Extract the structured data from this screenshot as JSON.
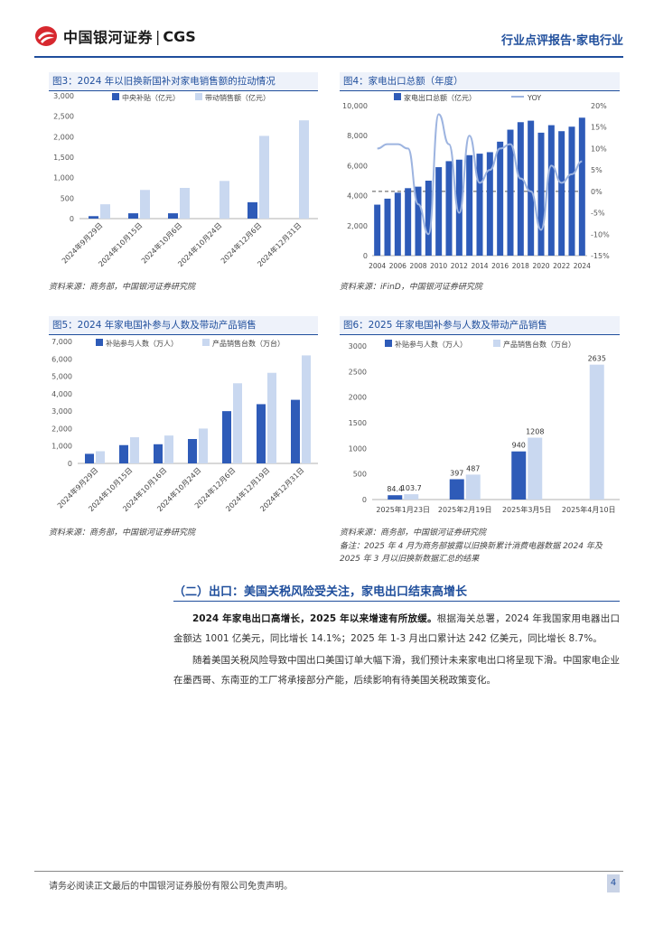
{
  "header": {
    "logo_cn": "中国银河证券",
    "logo_sep": "|",
    "logo_en": "CGS",
    "report_type": "行业点评报告·家电行业"
  },
  "figures": [
    {
      "title": "图3：2024 年以旧换新国补对家电销售额的拉动情况",
      "source": "资料来源：商务部，中国银河证券研究院"
    },
    {
      "title": "图4：家电出口总额（年度）",
      "source": "资料来源：iFinD，中国银河证券研究院"
    },
    {
      "title": "图5：2024 年家电国补参与人数及带动产品销售",
      "source": "资料来源：商务部，中国银河证券研究院"
    },
    {
      "title": "图6：2025 年家电国补参与人数及带动产品销售",
      "source": "资料来源：商务部，中国银河证券研究院",
      "note": "备注：2025 年 4 月为商务部披露以旧换新累计消费电器数据 2024 年及 2025 年 3 月以旧换新数据汇总的结果"
    }
  ],
  "chart_data": [
    {
      "type": "bar",
      "title": "图3：2024 年以旧换新国补对家电销售额的拉动情况",
      "categories": [
        "2024年9月29日",
        "2024年10月15日",
        "2024年10月6日",
        "2024年10月24日",
        "2024年12月6日",
        "2024年12月31日"
      ],
      "series": [
        {
          "name": "中央补贴（亿元）",
          "color": "#2e5bb8",
          "values": [
            60,
            130,
            130,
            null,
            400,
            null
          ]
        },
        {
          "name": "带动销售额（亿元）",
          "color": "#c9d8f0",
          "values": [
            350,
            700,
            750,
            920,
            2020,
            2400
          ]
        }
      ],
      "ylim": [
        0,
        3000
      ],
      "yticks": [
        0,
        500,
        1000,
        1500,
        2000,
        2500,
        3000
      ],
      "ytick_labels": [
        "0",
        "500",
        "1,000",
        "1,500",
        "2,000",
        "2,500",
        "3,000"
      ]
    },
    {
      "type": "bar+line",
      "title": "图4：家电出口总额（年度）",
      "x": [
        2004,
        2005,
        2006,
        2007,
        2008,
        2009,
        2010,
        2011,
        2012,
        2013,
        2014,
        2015,
        2016,
        2017,
        2018,
        2019,
        2020,
        2021,
        2022,
        2023,
        2024
      ],
      "xtick_labels": [
        "2004",
        "2006",
        "2008",
        "2010",
        "2012",
        "2014",
        "2016",
        "2018",
        "2020",
        "2022",
        "2024"
      ],
      "series": [
        {
          "name": "家电出口总额（亿元）",
          "color": "#2e5bb8",
          "axis": "left",
          "values": [
            3400,
            3800,
            4200,
            4500,
            4600,
            5000,
            5900,
            6300,
            6400,
            6700,
            6800,
            6900,
            7600,
            8400,
            8900,
            9000,
            8200,
            8700,
            8300,
            8600,
            9200
          ]
        },
        {
          "name": "YOY",
          "color": "#9db4e0",
          "axis": "right",
          "values": [
            10,
            11,
            11,
            10,
            -3,
            -10,
            18,
            11,
            -5,
            13,
            2,
            5,
            10,
            11,
            3,
            0,
            -9,
            6,
            2,
            4,
            7
          ]
        }
      ],
      "ylim_left": [
        0,
        10000
      ],
      "yticks_left": [
        0,
        2000,
        4000,
        6000,
        8000,
        10000
      ],
      "ytick_labels_left": [
        "0",
        "2,000",
        "4,000",
        "6,000",
        "8,000",
        "10,000"
      ],
      "ylim_right": [
        -15,
        20
      ],
      "yticks_right": [
        -15,
        -10,
        -5,
        0,
        5,
        10,
        15,
        20
      ],
      "ytick_labels_right": [
        "-15%",
        "-10%",
        "-5%",
        "0%",
        "5%",
        "10%",
        "15%",
        "20%"
      ]
    },
    {
      "type": "bar",
      "title": "图5：2024 年家电国补参与人数及带动产品销售",
      "categories": [
        "2024年9月29日",
        "2024年10月15日",
        "2024年10月16日",
        "2024年10月24日",
        "2024年12月6日",
        "2024年12月19日",
        "2024年12月31日"
      ],
      "series": [
        {
          "name": "补贴参与人数（万人）",
          "color": "#2e5bb8",
          "values": [
            550,
            1050,
            1100,
            1400,
            3000,
            3400,
            3650
          ]
        },
        {
          "name": "产品销售台数（万台）",
          "color": "#c9d8f0",
          "values": [
            700,
            1500,
            1600,
            2000,
            4600,
            5200,
            6200
          ]
        }
      ],
      "ylim": [
        0,
        7000
      ],
      "yticks": [
        0,
        1000,
        2000,
        3000,
        4000,
        5000,
        6000,
        7000
      ],
      "ytick_labels": [
        "0",
        "1,000",
        "2,000",
        "3,000",
        "4,000",
        "5,000",
        "6,000",
        "7,000"
      ]
    },
    {
      "type": "bar",
      "title": "图6：2025 年家电国补参与人数及带动产品销售",
      "categories": [
        "2025年1月23日",
        "2025年2月19日",
        "2025年3月5日",
        "2025年4月10日"
      ],
      "series": [
        {
          "name": "补贴参与人数（万人）",
          "color": "#2e5bb8",
          "values": [
            84.4,
            397,
            940,
            null
          ],
          "labels": [
            "84.4",
            "397",
            "940",
            ""
          ]
        },
        {
          "name": "产品销售台数（万台）",
          "color": "#c9d8f0",
          "values": [
            103.7,
            487,
            1208,
            2635
          ],
          "labels": [
            "103.7",
            "487",
            "1208",
            "2635"
          ]
        }
      ],
      "ylim": [
        0,
        3000
      ],
      "yticks": [
        0,
        500,
        1000,
        1500,
        2000,
        2500,
        3000
      ],
      "ytick_labels": [
        "0",
        "500",
        "1000",
        "1500",
        "2000",
        "2500",
        "3000"
      ]
    }
  ],
  "section": {
    "title": "（二）出口：美国关税风险受关注，家电出口结束高增长"
  },
  "paragraphs": [
    {
      "bold": "2024 年家电出口高增长，2025 年以来增速有所放缓。",
      "text": "根据海关总署，2024 年我国家用电器出口金额达 1001 亿美元，同比增长 14.1%；2025 年 1-3 月出口累计达 242 亿美元，同比增长 8.7%。"
    },
    {
      "bold": "",
      "text": "随着美国关税风险导致中国出口美国订单大幅下滑，我们预计未来家电出口将呈现下滑。中国家电企业在墨西哥、东南亚的工厂将承接部分产能，后续影响有待美国关税政策变化。"
    }
  ],
  "footer": {
    "disclaimer": "请务必阅读正文最后的中国银河证券股份有限公司免责声明。",
    "page": "4"
  },
  "colors": {
    "brand_blue": "#1f4e9c",
    "bar_dark": "#2e5bb8",
    "bar_light": "#c9d8f0",
    "logo_red": "#d7282f"
  }
}
